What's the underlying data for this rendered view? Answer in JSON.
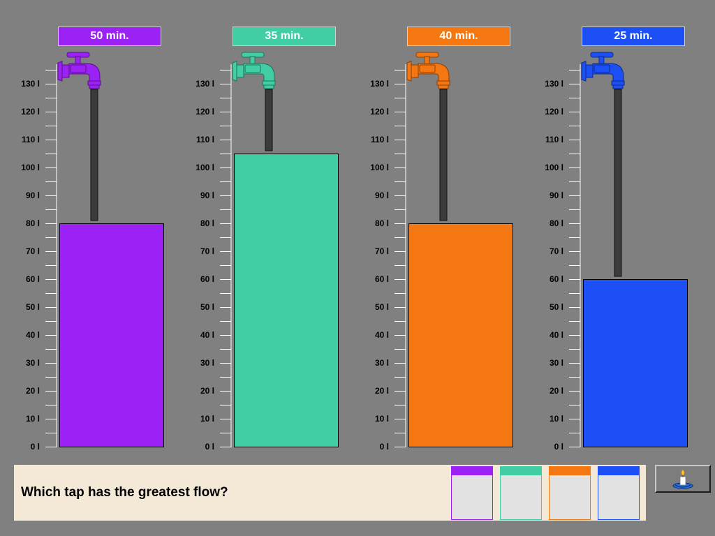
{
  "scale": {
    "unit": "l",
    "max": 130,
    "step": 10,
    "ticks": [
      "0 l",
      "10 l",
      "20 l",
      "30 l",
      "40 l",
      "50 l",
      "60 l",
      "70 l",
      "80 l",
      "90 l",
      "100 l",
      "110 l",
      "120 l",
      "130 l"
    ]
  },
  "taps": [
    {
      "time_label": "50 min.",
      "volume": 80,
      "color": "#9b21f5",
      "icon": "tap-icon"
    },
    {
      "time_label": "35 min.",
      "volume": 105,
      "color": "#41cea4",
      "icon": "tap-icon"
    },
    {
      "time_label": "40 min.",
      "volume": 80,
      "color": "#f57711",
      "icon": "tap-icon"
    },
    {
      "time_label": "25 min.",
      "volume": 60,
      "color": "#1c4ff5",
      "icon": "tap-icon"
    }
  ],
  "question": {
    "text": "Which tap has the greatest flow?"
  },
  "answers": [
    {
      "color": "#9b21f5"
    },
    {
      "color": "#41cea4"
    },
    {
      "color": "#f57711"
    },
    {
      "color": "#1c4ff5"
    }
  ],
  "help_button": {
    "icon": "candle-icon"
  }
}
